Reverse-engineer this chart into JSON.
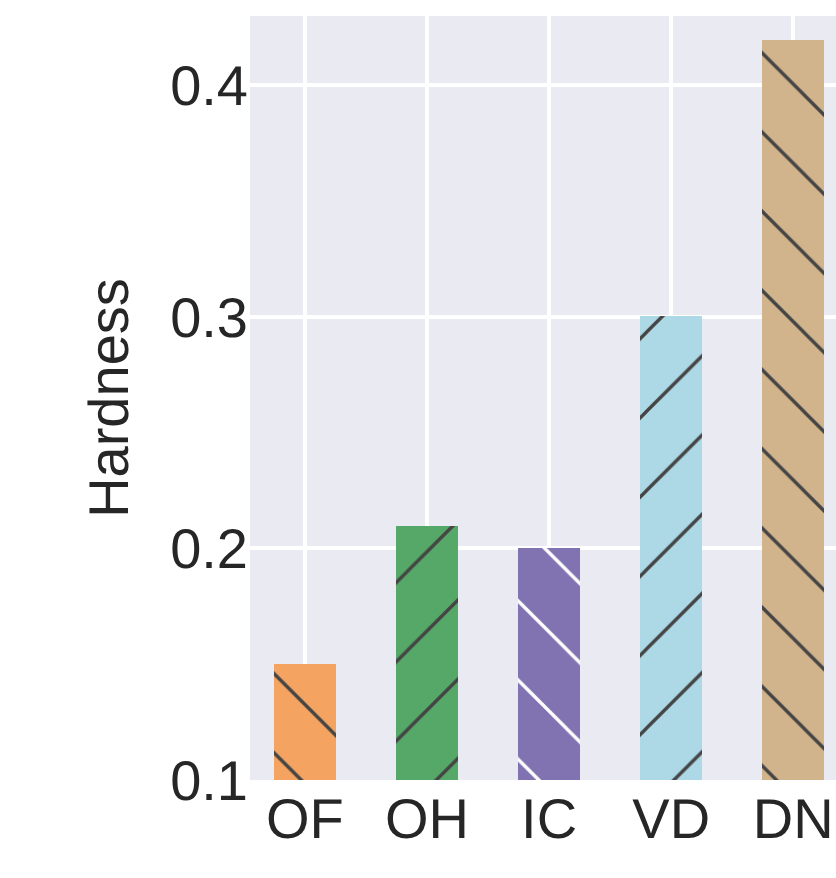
{
  "chart_data": {
    "type": "bar",
    "ylabel": "Hardness",
    "categories": [
      "OF",
      "OH",
      "IC",
      "VD",
      "DN"
    ],
    "values": [
      0.15,
      0.21,
      0.2,
      0.3,
      0.42
    ],
    "colors": [
      "#f4a460",
      "#55a868",
      "#8172b2",
      "#add8e6",
      "#d2b48c"
    ],
    "ylim": [
      0.1,
      0.43
    ],
    "yticks": [
      0.1,
      0.2,
      0.3,
      0.4
    ],
    "grid": true
  }
}
